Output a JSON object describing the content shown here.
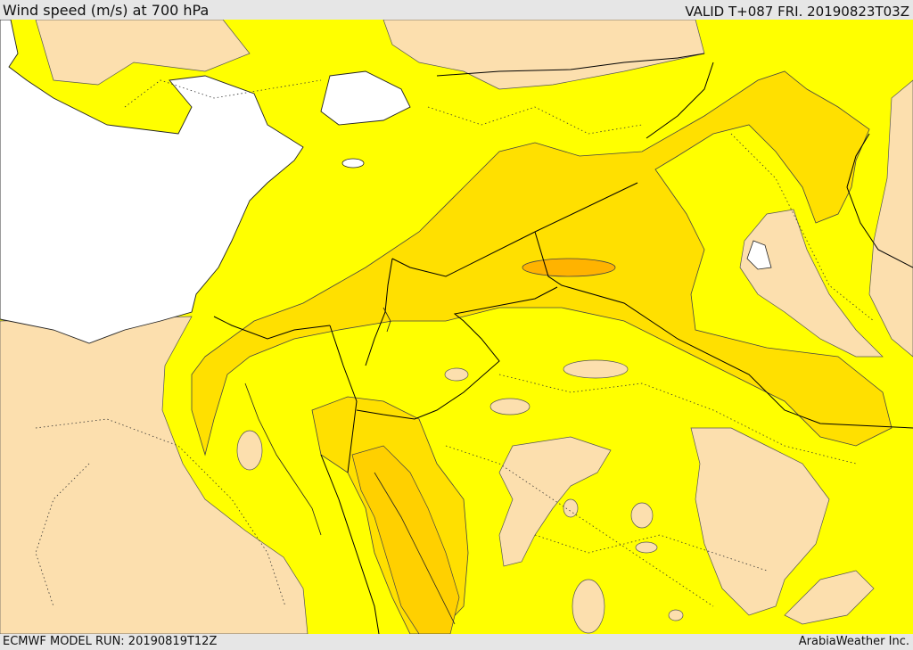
{
  "header": {
    "title": "Wind speed (m/s) at 700 hPa",
    "valid": "VALID T+087 FRI. 20190823T03Z"
  },
  "footer": {
    "model_run": "ECMWF MODEL RUN: 20190819T12Z",
    "credit": "ArabiaWeather Inc."
  },
  "palette": {
    "land_calm": "#fcdfae",
    "band_1": "#ffff00",
    "band_2": "#ffe000",
    "band_3": "#ffd000",
    "band_4": "#ffb300",
    "sea": "#ffffff",
    "boundary": "#000000"
  }
}
